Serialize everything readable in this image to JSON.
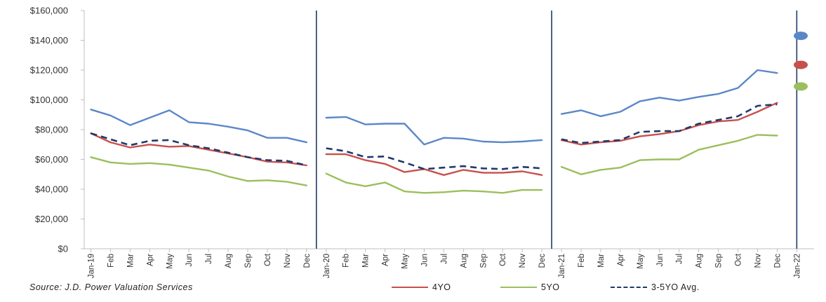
{
  "source": "Source: J.D. Power Valuation Services",
  "colors": {
    "blue": "#5b87c6",
    "red": "#c8504c",
    "green": "#9bbf5c",
    "avg": "#1f3a6a",
    "divider": "#1f3a6a"
  },
  "chart_data": {
    "type": "line",
    "title": "",
    "xlabel": "",
    "ylabel": "",
    "ylim": [
      0,
      160000
    ],
    "yticks": [
      "$0",
      "$20,000",
      "$40,000",
      "$60,000",
      "$80,000",
      "$100,000",
      "$120,000",
      "$140,000",
      "$160,000"
    ],
    "categories": [
      "Jan-19",
      "Feb",
      "Mar",
      "Apr",
      "May",
      "Jun",
      "Jul",
      "Aug",
      "Sep",
      "Oct",
      "Nov",
      "Dec",
      "Jan-20",
      "Feb",
      "Mar",
      "Apr",
      "May",
      "Jun",
      "Jul",
      "Aug",
      "Sep",
      "Oct",
      "Nov",
      "Dec",
      "Jan-21",
      "Feb",
      "Mar",
      "Apr",
      "May",
      "Jun",
      "Jul",
      "Aug",
      "Sep",
      "Oct",
      "Nov",
      "Dec",
      "Jan-22"
    ],
    "series": [
      {
        "color": "#5b87c6",
        "style": "solid",
        "values": [
          93500,
          89500,
          83000,
          88000,
          93000,
          85000,
          84000,
          82000,
          79500,
          74500,
          74500,
          71500,
          88000,
          88500,
          83500,
          84000,
          84000,
          70000,
          74500,
          74000,
          72000,
          71500,
          72000,
          73000,
          90500,
          93000,
          89000,
          92000,
          99000,
          101500,
          99500,
          102000,
          104000,
          108000,
          120000,
          118000,
          null
        ],
        "end_marker": 143000
      },
      {
        "name": "4YO",
        "color": "#c8504c",
        "style": "solid",
        "values": [
          77500,
          71500,
          68000,
          70000,
          68500,
          69000,
          66500,
          64000,
          61500,
          58500,
          58000,
          56000,
          63500,
          63500,
          59500,
          57000,
          51500,
          53500,
          49500,
          53000,
          51000,
          51000,
          52000,
          49500,
          73000,
          70000,
          71500,
          72500,
          75500,
          77000,
          79000,
          83000,
          85500,
          86500,
          92000,
          98000,
          null
        ],
        "end_marker": 123500
      },
      {
        "name": "5YO",
        "color": "#9bbf5c",
        "style": "solid",
        "values": [
          61500,
          58000,
          57000,
          57500,
          56500,
          54500,
          52500,
          48500,
          45500,
          46000,
          45000,
          42500,
          50500,
          44500,
          42000,
          44500,
          38500,
          37500,
          38000,
          39000,
          38500,
          37500,
          39500,
          39500,
          55000,
          50000,
          53000,
          54500,
          59500,
          60000,
          60000,
          66500,
          69500,
          72500,
          76500,
          76000,
          null
        ],
        "end_marker": 109000
      },
      {
        "name": "3-5YO Avg.",
        "color": "#1f3a6a",
        "style": "dashed",
        "values": [
          77500,
          73500,
          69500,
          72500,
          73000,
          69500,
          67500,
          64500,
          61500,
          59500,
          59000,
          56000,
          67500,
          65500,
          61500,
          62000,
          58000,
          53500,
          54500,
          55500,
          54000,
          53500,
          55000,
          54000,
          73500,
          71000,
          72000,
          73000,
          78500,
          79000,
          79000,
          84000,
          86500,
          89000,
          96000,
          97000,
          null
        ]
      }
    ],
    "segment_breaks_after": [
      11,
      23
    ],
    "dividers_at": [
      11.5,
      23.5,
      36
    ],
    "gridlines": false,
    "legend_position": "bottom"
  }
}
